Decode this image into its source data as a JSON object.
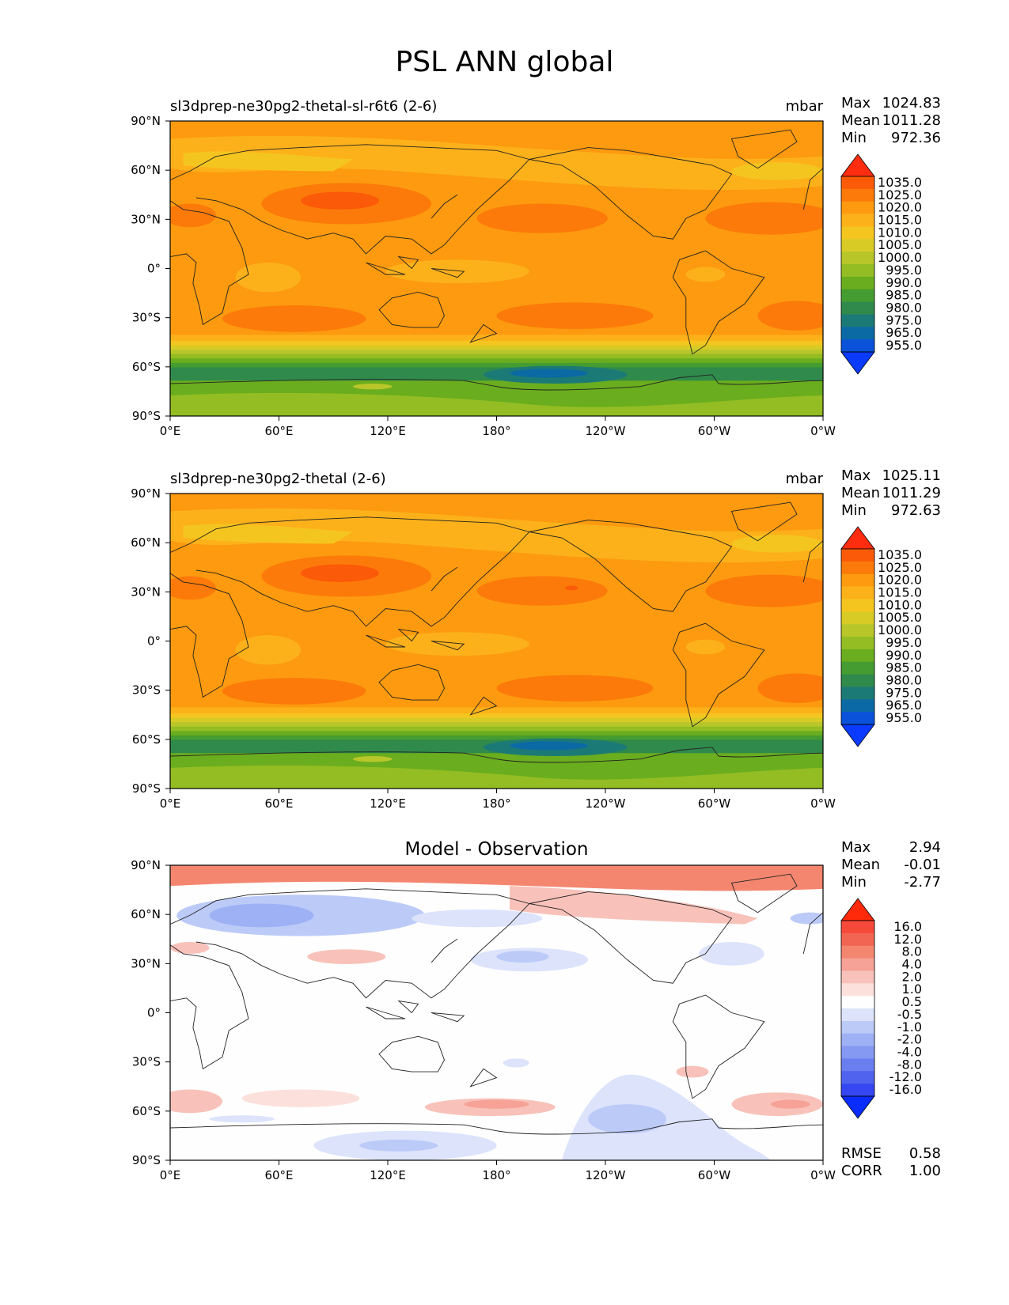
{
  "title": "PSL ANN global",
  "chart_data": [
    {
      "type": "heatmap",
      "subtitle": "sl3dprep-ne30pg2-thetal-sl-r6t6 (2-6)",
      "units": "mbar",
      "stats": {
        "max_label": "Max",
        "max": "1024.83",
        "mean_label": "Mean",
        "mean": "1011.28",
        "min_label": "Min",
        "min": "972.36"
      },
      "x_ticks": [
        "0°E",
        "60°E",
        "120°E",
        "180°",
        "120°W",
        "60°W",
        "0°W"
      ],
      "y_ticks": [
        "90°N",
        "60°N",
        "30°N",
        "0°",
        "30°S",
        "60°S",
        "90°S"
      ],
      "xlim": [
        0,
        360
      ],
      "ylim": [
        -90,
        90
      ],
      "colorbar": {
        "levels": [
          "1035.0",
          "1025.0",
          "1020.0",
          "1015.0",
          "1010.0",
          "1005.0",
          "1000.0",
          "995.0",
          "990.0",
          "985.0",
          "980.0",
          "975.0",
          "965.0",
          "955.0"
        ],
        "colors": [
          "#ff2d0f",
          "#fb5a08",
          "#fc7a0a",
          "#fd9a0f",
          "#fcb11a",
          "#f5c51f",
          "#d9cb26",
          "#b8c62a",
          "#93bd23",
          "#6aad1e",
          "#459c30",
          "#2f8a4c",
          "#1c7a76",
          "#0b6aa3",
          "#0a52d9",
          "#0a3bff"
        ]
      }
    },
    {
      "type": "heatmap",
      "subtitle": "sl3dprep-ne30pg2-thetal (2-6)",
      "units": "mbar",
      "stats": {
        "max_label": "Max",
        "max": "1025.11",
        "mean_label": "Mean",
        "mean": "1011.29",
        "min_label": "Min",
        "min": "972.63"
      },
      "x_ticks": [
        "0°E",
        "60°E",
        "120°E",
        "180°",
        "120°W",
        "60°W",
        "0°W"
      ],
      "y_ticks": [
        "90°N",
        "60°N",
        "30°N",
        "0°",
        "30°S",
        "60°S",
        "90°S"
      ],
      "xlim": [
        0,
        360
      ],
      "ylim": [
        -90,
        90
      ],
      "colorbar": {
        "levels": [
          "1035.0",
          "1025.0",
          "1020.0",
          "1015.0",
          "1010.0",
          "1005.0",
          "1000.0",
          "995.0",
          "990.0",
          "985.0",
          "980.0",
          "975.0",
          "965.0",
          "955.0"
        ],
        "colors": [
          "#ff2d0f",
          "#fb5a08",
          "#fc7a0a",
          "#fd9a0f",
          "#fcb11a",
          "#f5c51f",
          "#d9cb26",
          "#b8c62a",
          "#93bd23",
          "#6aad1e",
          "#459c30",
          "#2f8a4c",
          "#1c7a76",
          "#0b6aa3",
          "#0a52d9",
          "#0a3bff"
        ]
      }
    },
    {
      "type": "heatmap",
      "subtitle": "Model - Observation",
      "units": "",
      "stats": {
        "max_label": "Max",
        "max": "2.94",
        "mean_label": "Mean",
        "mean": "-0.01",
        "min_label": "Min",
        "min": "-2.77"
      },
      "extra_stats": {
        "rmse_label": "RMSE",
        "rmse": "0.58",
        "corr_label": "CORR",
        "corr": "1.00"
      },
      "x_ticks": [
        "0°E",
        "60°E",
        "120°E",
        "180°",
        "120°W",
        "60°W",
        "0°W"
      ],
      "y_ticks": [
        "90°N",
        "60°N",
        "30°N",
        "0°",
        "30°S",
        "60°S",
        "90°S"
      ],
      "xlim": [
        0,
        360
      ],
      "ylim": [
        -90,
        90
      ],
      "colorbar": {
        "levels": [
          "16.0",
          "12.0",
          "8.0",
          "4.0",
          "2.0",
          "1.0",
          "0.5",
          "-0.5",
          "-1.0",
          "-2.0",
          "-4.0",
          "-8.0",
          "-12.0",
          "-16.0"
        ],
        "colors": [
          "#ff2a0a",
          "#f5493a",
          "#f26552",
          "#f48670",
          "#f6a296",
          "#f8c2ba",
          "#fbe0dc",
          "#fefefe",
          "#dce3fb",
          "#bccaf8",
          "#9fb1f5",
          "#8598f2",
          "#6a7ef0",
          "#4f63ee",
          "#3547f2",
          "#0a2cff"
        ]
      }
    }
  ]
}
